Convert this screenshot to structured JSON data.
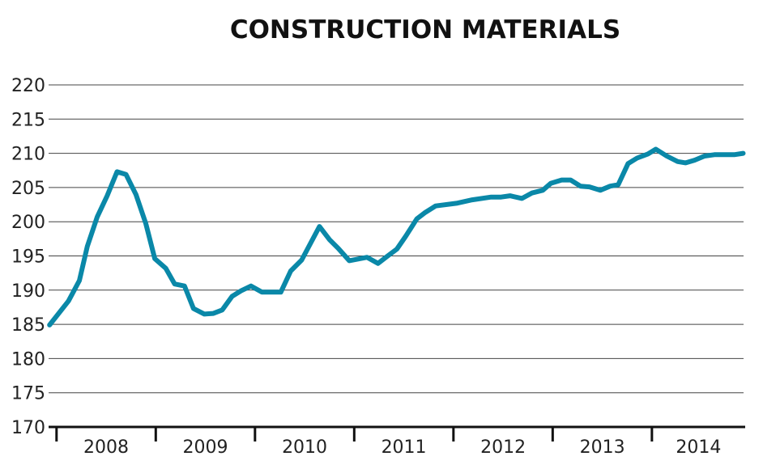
{
  "chart_data": {
    "type": "line",
    "title": "CONSTRUCTION MATERIALS",
    "xlabel": "",
    "ylabel": "",
    "ylim": [
      170,
      220
    ],
    "xlim": [
      2007.92,
      2014.94
    ],
    "yticks": [
      170,
      175,
      180,
      185,
      190,
      195,
      200,
      205,
      210,
      215,
      220
    ],
    "xtick_labels": [
      "2008",
      "2009",
      "2010",
      "2011",
      "2012",
      "2013",
      "2014"
    ],
    "grid": true,
    "line_color": "#0a88a8",
    "series": [
      {
        "points": [
          [
            2007.93,
            184.9
          ],
          [
            2008.12,
            188.4
          ],
          [
            2008.23,
            191.4
          ],
          [
            2008.31,
            196.4
          ],
          [
            2008.41,
            200.7
          ],
          [
            2008.51,
            203.8
          ],
          [
            2008.61,
            207.3
          ],
          [
            2008.7,
            206.9
          ],
          [
            2008.8,
            204.0
          ],
          [
            2008.9,
            199.7
          ],
          [
            2008.99,
            194.6
          ],
          [
            2009.1,
            193.2
          ],
          [
            2009.19,
            190.9
          ],
          [
            2009.29,
            190.6
          ],
          [
            2009.38,
            187.3
          ],
          [
            2009.49,
            186.5
          ],
          [
            2009.58,
            186.6
          ],
          [
            2009.67,
            187.1
          ],
          [
            2009.77,
            189.1
          ],
          [
            2009.86,
            189.9
          ],
          [
            2009.96,
            190.6
          ],
          [
            2010.07,
            189.7
          ],
          [
            2010.26,
            189.7
          ],
          [
            2010.36,
            192.8
          ],
          [
            2010.47,
            194.4
          ],
          [
            2010.65,
            199.3
          ],
          [
            2010.75,
            197.4
          ],
          [
            2010.84,
            196.1
          ],
          [
            2010.95,
            194.3
          ],
          [
            2011.13,
            194.8
          ],
          [
            2011.24,
            193.9
          ],
          [
            2011.33,
            194.9
          ],
          [
            2011.43,
            196.0
          ],
          [
            2011.52,
            197.9
          ],
          [
            2011.63,
            200.4
          ],
          [
            2011.71,
            201.3
          ],
          [
            2011.82,
            202.3
          ],
          [
            2012.03,
            202.7
          ],
          [
            2012.19,
            203.2
          ],
          [
            2012.38,
            203.6
          ],
          [
            2012.48,
            203.6
          ],
          [
            2012.57,
            203.8
          ],
          [
            2012.69,
            203.4
          ],
          [
            2012.79,
            204.2
          ],
          [
            2012.9,
            204.6
          ],
          [
            2012.98,
            205.6
          ],
          [
            2013.09,
            206.1
          ],
          [
            2013.18,
            206.1
          ],
          [
            2013.28,
            205.2
          ],
          [
            2013.37,
            205.1
          ],
          [
            2013.48,
            204.6
          ],
          [
            2013.58,
            205.2
          ],
          [
            2013.66,
            205.4
          ],
          [
            2013.76,
            208.5
          ],
          [
            2013.85,
            209.3
          ],
          [
            2013.96,
            209.9
          ],
          [
            2014.04,
            210.6
          ],
          [
            2014.15,
            209.6
          ],
          [
            2014.26,
            208.8
          ],
          [
            2014.34,
            208.6
          ],
          [
            2014.43,
            209.0
          ],
          [
            2014.53,
            209.6
          ],
          [
            2014.63,
            209.8
          ],
          [
            2014.83,
            209.8
          ],
          [
            2014.92,
            210.0
          ]
        ]
      }
    ]
  }
}
